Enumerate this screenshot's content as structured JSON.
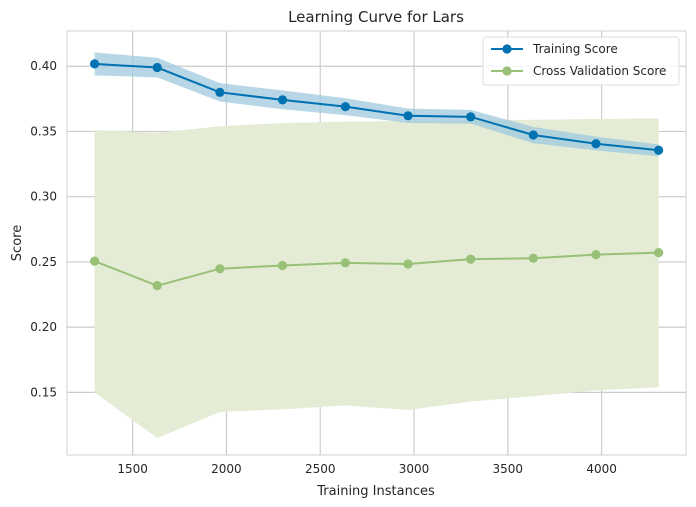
{
  "chart_data": {
    "type": "line",
    "title": "Learning Curve for Lars",
    "xlabel": "Training Instances",
    "ylabel": "Score",
    "xlim": [
      1150,
      4450
    ],
    "ylim": [
      0.102,
      0.427
    ],
    "xticks": [
      1500,
      2000,
      2500,
      3000,
      3500,
      4000
    ],
    "yticks": [
      0.15,
      0.2,
      0.25,
      0.3,
      0.35,
      0.4
    ],
    "xtick_labels": [
      "1500",
      "2000",
      "2500",
      "3000",
      "3500",
      "4000"
    ],
    "ytick_labels": [
      "0.15",
      "0.20",
      "0.25",
      "0.30",
      "0.35",
      "0.40"
    ],
    "grid": true,
    "legend_position": "top-right",
    "x": [
      1297,
      1631,
      1965,
      2299,
      2634,
      2968,
      3302,
      3636,
      3970,
      4304
    ],
    "series": [
      {
        "name": "Training Score",
        "color": "#0072b2",
        "band_color": "#9fc9dd",
        "values": [
          0.4018,
          0.399,
          0.38,
          0.3742,
          0.369,
          0.362,
          0.3612,
          0.3473,
          0.3406,
          0.3356
        ],
        "upper": [
          0.4105,
          0.4065,
          0.387,
          0.3815,
          0.3755,
          0.3675,
          0.3665,
          0.3535,
          0.346,
          0.34
        ],
        "lower": [
          0.393,
          0.3915,
          0.373,
          0.367,
          0.3625,
          0.3565,
          0.356,
          0.341,
          0.3355,
          0.331
        ]
      },
      {
        "name": "Cross Validation Score",
        "color": "#98c177",
        "band_color": "#e4ecd6",
        "values": [
          0.2506,
          0.2318,
          0.2448,
          0.2473,
          0.2493,
          0.2484,
          0.2521,
          0.2528,
          0.2556,
          0.2571
        ],
        "upper": [
          0.351,
          0.349,
          0.354,
          0.3565,
          0.3575,
          0.358,
          0.3585,
          0.359,
          0.3595,
          0.36
        ],
        "lower": [
          0.15,
          0.115,
          0.135,
          0.137,
          0.14,
          0.1365,
          0.143,
          0.147,
          0.1515,
          0.154
        ]
      }
    ]
  }
}
